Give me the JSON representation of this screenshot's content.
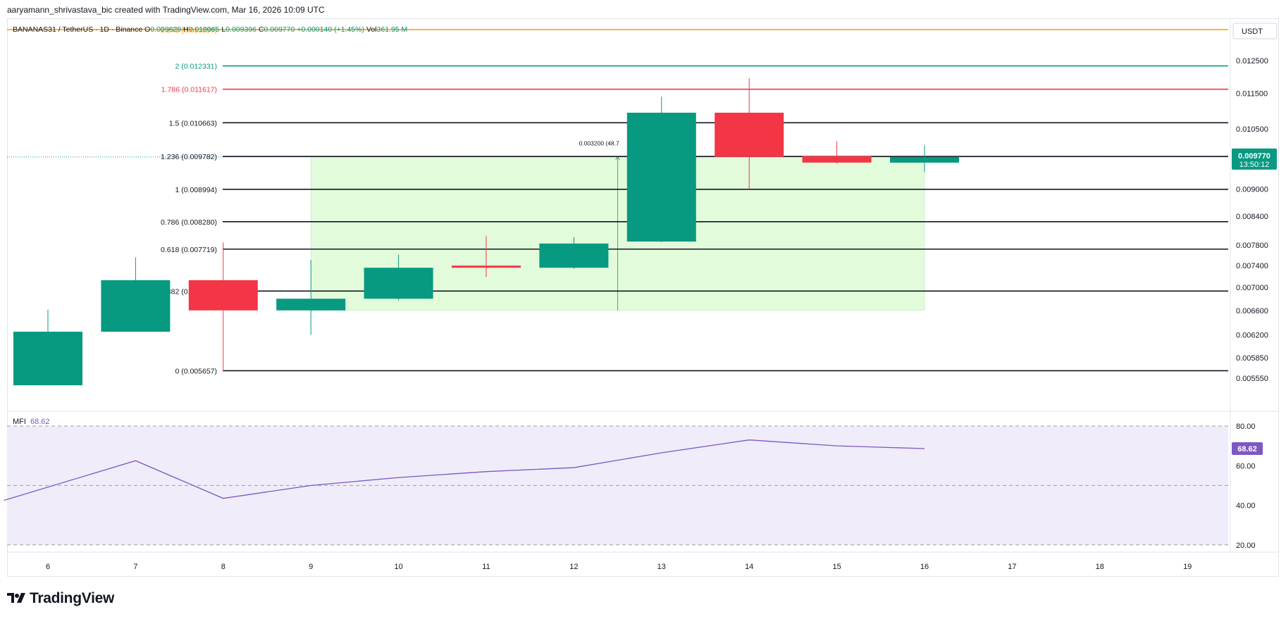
{
  "header": {
    "attribution": "aaryamann_shrivastava_bic created with TradingView.com, Mar 16, 2026 10:09 UTC"
  },
  "legend": {
    "symbol": "BANANAS31 / TetherUS · 1D · Binance",
    "open_label": "O",
    "open": "0.009629",
    "high_label": "H",
    "high": "0.010065",
    "low_label": "L",
    "low": "0.009396",
    "close_label": "C",
    "close": "0.009770",
    "change": "+0.000140 (+1.45%)",
    "vol_label": "Vol",
    "vol": "361.95 M"
  },
  "currency": "USDT",
  "price_tag": {
    "value": "0.009770",
    "countdown": "13:50:12"
  },
  "mfi": {
    "label": "MFI",
    "value": "68.62",
    "tag": "68.62"
  },
  "range_tool": {
    "text": "0.003200 (48.7"
  },
  "brand": {
    "name": "TradingView"
  },
  "colors": {
    "up": "#089981",
    "down": "#f23645",
    "mfi_line": "#7e57c2",
    "range_fill": "#e1fbdb",
    "range_line": "#4caf50"
  },
  "chart_data": [
    {
      "type": "candlestick",
      "x_ticks": [
        "6",
        "7",
        "8",
        "9",
        "10",
        "11",
        "12",
        "13",
        "14",
        "15",
        "16",
        "17",
        "18",
        "19"
      ],
      "y_ticks": [
        "0.012500",
        "0.011500",
        "0.010500",
        "0.009000",
        "0.008400",
        "0.007800",
        "0.007400",
        "0.007000",
        "0.006600",
        "0.006200",
        "0.005850",
        "0.005550"
      ],
      "y_scale": "log",
      "candles": [
        {
          "day": 6,
          "open": 0.00545,
          "high": 0.00661,
          "low": 0.00545,
          "close": 0.00625
        },
        {
          "day": 7,
          "open": 0.00625,
          "high": 0.00756,
          "low": 0.00625,
          "close": 0.00713
        },
        {
          "day": 8,
          "open": 0.00713,
          "high": 0.00785,
          "low": 0.00565,
          "close": 0.0066
        },
        {
          "day": 9,
          "open": 0.0066,
          "high": 0.00751,
          "low": 0.0062,
          "close": 0.0068
        },
        {
          "day": 10,
          "open": 0.0068,
          "high": 0.00761,
          "low": 0.00677,
          "close": 0.00736
        },
        {
          "day": 11,
          "open": 0.0074,
          "high": 0.00798,
          "low": 0.00719,
          "close": 0.00736
        },
        {
          "day": 12,
          "open": 0.00736,
          "high": 0.00796,
          "low": 0.00734,
          "close": 0.00783
        },
        {
          "day": 13,
          "open": 0.00787,
          "high": 0.0114,
          "low": 0.00786,
          "close": 0.01094
        },
        {
          "day": 14,
          "open": 0.01094,
          "high": 0.01195,
          "low": 0.009,
          "close": 0.00977
        },
        {
          "day": 15,
          "open": 0.00979,
          "high": 0.01017,
          "low": 0.00961,
          "close": 0.00963
        },
        {
          "day": 16,
          "open": 0.009629,
          "high": 0.010065,
          "low": 0.009396,
          "close": 0.00977
        }
      ],
      "fib_levels": [
        {
          "label": "0 (0.005657)",
          "price": 0.005657,
          "color": "#131722"
        },
        {
          "label": "0.382 (0.006934)",
          "price": 0.006934,
          "color": "#131722"
        },
        {
          "label": "0.618 (0.007719)",
          "price": 0.007719,
          "color": "#131722"
        },
        {
          "label": "0.786 (0.008280)",
          "price": 0.00828,
          "color": "#131722"
        },
        {
          "label": "1 (0.008994)",
          "price": 0.008994,
          "color": "#131722"
        },
        {
          "label": "1.236 (0.009782)",
          "price": 0.009782,
          "color": "#131722"
        },
        {
          "label": "1.5 (0.010663)",
          "price": 0.010663,
          "color": "#131722"
        },
        {
          "label": "1.786 (0.011617)",
          "price": 0.011617,
          "color": "#f23645"
        },
        {
          "label": "2 (0.012331)",
          "price": 0.012331,
          "color": "#089981"
        },
        {
          "label": "2.272 (0.013236)",
          "price": 0.013236,
          "color": "#ff9800"
        }
      ],
      "range": {
        "from_day": 9,
        "to_day": 16,
        "low": 0.0066,
        "high": 0.00978
      }
    },
    {
      "type": "line",
      "name": "MFI",
      "x": [
        5.5,
        7,
        8,
        9,
        10,
        11,
        12,
        13,
        14,
        15,
        16
      ],
      "y": [
        42.5,
        62.5,
        43.5,
        50.0,
        54.0,
        57.0,
        59.0,
        66.5,
        73.0,
        70.0,
        68.62
      ],
      "y_ticks": [
        "80.00",
        "60.00",
        "40.00",
        "20.00"
      ],
      "bands": [
        80,
        50,
        20
      ]
    }
  ]
}
